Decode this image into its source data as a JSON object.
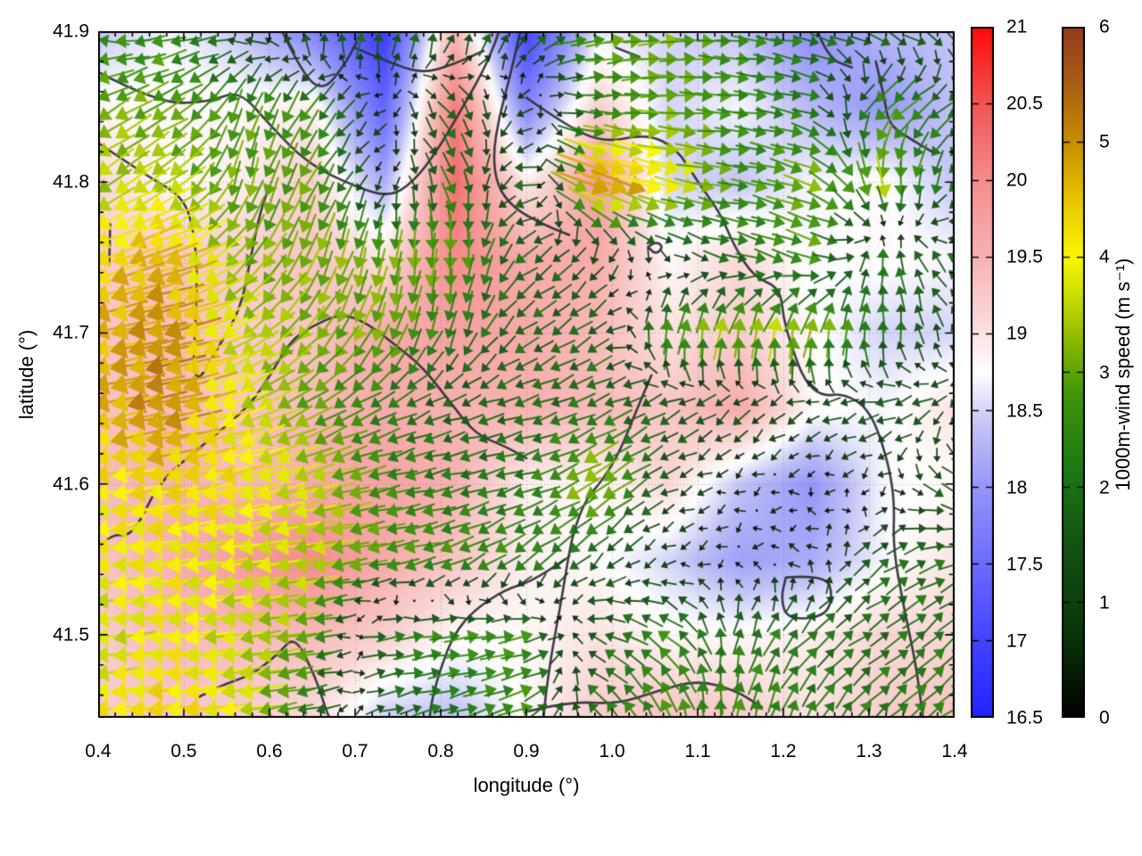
{
  "chart_data": {
    "type": "heatmap",
    "subtype": "quiver-over-heatmap-with-contours",
    "title": "",
    "xlabel": "longitude (°)",
    "ylabel": "latitude (°)",
    "xlim": [
      0.4,
      1.4
    ],
    "ylim": [
      41.445,
      41.9
    ],
    "grid": "dotted-at-major-ticks",
    "x_ticks": [
      0.4,
      0.5,
      0.6,
      0.7,
      0.8,
      0.9,
      1.0,
      1.1,
      1.2,
      1.3,
      1.4
    ],
    "x_tick_labels": [
      "0.4",
      "0.5",
      "0.6",
      "0.7",
      "0.8",
      "0.9",
      "1.0",
      "1.1",
      "1.2",
      "1.3",
      "1.4"
    ],
    "y_ticks": [
      41.5,
      41.6,
      41.7,
      41.8,
      41.9
    ],
    "y_tick_labels": [
      "41.5",
      "41.6",
      "41.7",
      "41.8",
      "41.9"
    ],
    "minor_tick_step": 0.02,
    "temperature": {
      "description": "background shaded field, right inner colorbar",
      "colorbar": {
        "min": 16.5,
        "max": 21,
        "ticks": [
          16.5,
          17,
          17.5,
          18,
          18.5,
          19,
          19.5,
          20,
          20.5,
          21
        ],
        "tick_labels": [
          "16.5",
          "17",
          "17.5",
          "18",
          "18.5",
          "19",
          "19.5",
          "20",
          "20.5",
          "21"
        ],
        "stops": [
          [
            16.5,
            "#2222ff"
          ],
          [
            17.0,
            "#4343ff"
          ],
          [
            17.5,
            "#6b6bff"
          ],
          [
            18.0,
            "#9595fa"
          ],
          [
            18.4,
            "#c3c3f6"
          ],
          [
            18.75,
            "#ffffff"
          ],
          [
            19.1,
            "#f9d7d7"
          ],
          [
            19.5,
            "#f7b2b2"
          ],
          [
            20.0,
            "#f58c8c"
          ],
          [
            20.5,
            "#f25454"
          ],
          [
            21.0,
            "#fc0a0a"
          ]
        ]
      },
      "lons": [
        0.4,
        0.4833,
        0.5667,
        0.65,
        0.7333,
        0.8167,
        0.9,
        0.9833,
        1.0667,
        1.15,
        1.2333,
        1.3167,
        1.4
      ],
      "lats": [
        41.9,
        41.85,
        41.8,
        41.75,
        41.7,
        41.65,
        41.6,
        41.55,
        41.5,
        41.45
      ],
      "values": [
        [
          18.4,
          18.7,
          18.4,
          17.8,
          16.9,
          19.5,
          17.0,
          18.6,
          18.5,
          18.4,
          17.9,
          18.3,
          18.4
        ],
        [
          18.8,
          18.8,
          18.8,
          18.9,
          17.4,
          20.2,
          17.8,
          19.2,
          18.5,
          18.7,
          18.3,
          18.0,
          18.4
        ],
        [
          19.1,
          18.8,
          18.9,
          19.2,
          18.2,
          20.3,
          18.9,
          19.8,
          18.5,
          18.4,
          18.7,
          18.8,
          18.4
        ],
        [
          19.2,
          19.3,
          19.2,
          19.3,
          19.0,
          20.0,
          19.6,
          19.6,
          18.8,
          19.1,
          18.7,
          18.8,
          18.7
        ],
        [
          19.3,
          19.4,
          19.2,
          19.3,
          19.6,
          19.7,
          19.6,
          19.4,
          19.0,
          19.2,
          18.8,
          18.5,
          18.5
        ],
        [
          19.3,
          19.4,
          19.3,
          19.4,
          19.6,
          19.5,
          19.5,
          19.4,
          19.3,
          19.6,
          18.8,
          18.7,
          19.0
        ],
        [
          19.4,
          19.5,
          19.4,
          19.6,
          19.7,
          19.5,
          18.9,
          18.8,
          19.1,
          18.4,
          18.0,
          18.7,
          18.8
        ],
        [
          19.3,
          19.5,
          19.8,
          20.0,
          19.6,
          19.3,
          18.9,
          18.8,
          18.5,
          18.1,
          18.2,
          18.7,
          19.0
        ],
        [
          19.2,
          19.4,
          19.4,
          19.4,
          19.2,
          18.8,
          18.8,
          19.0,
          18.8,
          18.8,
          18.9,
          19.1,
          19.1
        ],
        [
          19.2,
          19.3,
          19.2,
          19.1,
          18.5,
          18.4,
          18.8,
          19.2,
          19.3,
          19.2,
          19.0,
          19.2,
          19.3
        ]
      ]
    },
    "wind": {
      "description": "arrow field colored by speed, far-right colorbar",
      "colorbar": {
        "label": "1000m-wind speed (m s⁻¹)",
        "min": 0,
        "max": 6,
        "ticks": [
          0,
          1,
          2,
          3,
          4,
          5,
          6
        ],
        "tick_labels": [
          "0",
          "1",
          "2",
          "3",
          "4",
          "5",
          "6"
        ],
        "stops": [
          [
            0,
            "#000000"
          ],
          [
            0.7,
            "#0a340a"
          ],
          [
            1.5,
            "#145214"
          ],
          [
            2.2,
            "#1f7a14"
          ],
          [
            2.8,
            "#3f9407"
          ],
          [
            3.2,
            "#7fb300"
          ],
          [
            3.7,
            "#cfe000"
          ],
          [
            4.0,
            "#f8f800"
          ],
          [
            4.5,
            "#e8c400"
          ],
          [
            5.0,
            "#c68e00"
          ],
          [
            5.5,
            "#a85f12"
          ],
          [
            6.0,
            "#933a1f"
          ]
        ]
      },
      "lons": [
        0.4,
        0.4833,
        0.5667,
        0.65,
        0.7333,
        0.8167,
        0.9,
        0.9833,
        1.0667,
        1.15,
        1.2333,
        1.3167,
        1.4
      ],
      "lats": [
        41.9,
        41.85,
        41.8,
        41.75,
        41.7,
        41.65,
        41.6,
        41.55,
        41.5,
        41.45
      ],
      "u": [
        [
          -2.5,
          -2.5,
          -1.5,
          0.0,
          0.5,
          0.3,
          1.0,
          3.0,
          3.0,
          2.5,
          2.0,
          2.0,
          1.5
        ],
        [
          -2.8,
          -2.5,
          -1.0,
          -1.5,
          -0.5,
          1.2,
          -0.8,
          2.0,
          3.0,
          2.5,
          2.0,
          -2.5,
          -1.5
        ],
        [
          -2.8,
          -3.0,
          -0.5,
          -1.5,
          -0.3,
          1.0,
          -1.8,
          5.0,
          4.0,
          2.5,
          3.0,
          0.5,
          -1.0
        ],
        [
          -4.0,
          -4.5,
          -2.0,
          -1.0,
          -0.5,
          0.0,
          -1.5,
          -0.5,
          0.5,
          2.0,
          2.5,
          0.0,
          -1.5
        ],
        [
          -4.5,
          -5.0,
          -3.0,
          -2.0,
          -1.0,
          -0.5,
          -1.5,
          -1.5,
          0.5,
          0.5,
          0.5,
          0.0,
          -0.5
        ],
        [
          -4.5,
          -5.0,
          -3.5,
          -2.5,
          -2.0,
          -1.5,
          -1.8,
          -1.8,
          -1.5,
          -1.0,
          -1.0,
          -1.5,
          -1.0
        ],
        [
          -4.0,
          -4.2,
          -4.0,
          -3.5,
          -2.5,
          -2.0,
          -2.0,
          -3.0,
          -1.0,
          -0.3,
          -0.2,
          -0.3,
          1.5
        ],
        [
          -4.0,
          -4.0,
          -3.8,
          -3.5,
          -2.8,
          -2.5,
          -2.0,
          -1.0,
          -0.5,
          -0.2,
          -0.5,
          1.5,
          1.8
        ],
        [
          -3.5,
          -4.0,
          -3.5,
          -3.0,
          2.0,
          2.5,
          2.5,
          -1.5,
          -2.0,
          0.5,
          1.5,
          1.5,
          1.5
        ],
        [
          -4.0,
          -4.3,
          -3.8,
          -2.0,
          1.5,
          2.0,
          2.5,
          -1.5,
          -1.0,
          0.5,
          1.0,
          1.5,
          2.0
        ]
      ],
      "v": [
        [
          0.5,
          -0.5,
          0.5,
          2.0,
          2.0,
          1.8,
          1.5,
          0.5,
          0.3,
          -0.3,
          -0.5,
          -0.5,
          -1.0
        ],
        [
          -1.5,
          -1.5,
          -2.5,
          -2.0,
          -0.3,
          -1.5,
          -0.5,
          0.0,
          0.0,
          -0.3,
          -0.5,
          -1.8,
          -1.0
        ],
        [
          -2.0,
          -2.0,
          -3.0,
          -2.5,
          -0.3,
          -2.0,
          0.0,
          -2.0,
          -1.0,
          -0.3,
          -1.0,
          -3.5,
          -1.5
        ],
        [
          -1.5,
          -1.5,
          -2.5,
          -3.0,
          -3.0,
          -3.0,
          -1.0,
          -1.0,
          -0.5,
          -0.5,
          -1.0,
          2.0,
          1.0
        ],
        [
          -1.0,
          -1.0,
          -2.0,
          -2.5,
          -3.0,
          -2.0,
          -1.0,
          -1.0,
          3.0,
          3.5,
          3.5,
          2.0,
          1.0
        ],
        [
          -1.0,
          -1.0,
          -1.5,
          -1.5,
          -1.0,
          -0.5,
          -0.5,
          -0.8,
          -0.8,
          -1.0,
          -0.5,
          -0.5,
          -1.0
        ],
        [
          -0.5,
          -0.8,
          -1.0,
          -1.0,
          -0.5,
          -0.5,
          -0.5,
          -2.0,
          -0.5,
          -0.1,
          -0.1,
          -0.3,
          -1.0
        ],
        [
          -0.5,
          -0.5,
          -0.5,
          -0.5,
          -0.5,
          -1.0,
          -1.5,
          -1.0,
          -0.3,
          -0.1,
          0.3,
          1.2,
          0.5
        ],
        [
          -0.3,
          -0.5,
          -0.5,
          -0.5,
          0.3,
          0.3,
          0.5,
          0.5,
          1.5,
          2.0,
          1.5,
          1.0,
          1.5
        ],
        [
          -0.5,
          -0.3,
          -0.5,
          -0.5,
          0.5,
          0.5,
          1.0,
          1.5,
          2.5,
          2.5,
          2.0,
          1.5,
          1.5
        ]
      ]
    },
    "contours": [
      [
        [
          0.4,
          41.873
        ],
        [
          0.47,
          41.852
        ],
        [
          0.53,
          41.853
        ],
        [
          0.565,
          41.861
        ],
        [
          0.6,
          41.838
        ],
        [
          0.645,
          41.812
        ],
        [
          0.7,
          41.797
        ],
        [
          0.74,
          41.79
        ],
        [
          0.768,
          41.8
        ],
        [
          0.795,
          41.82
        ],
        [
          0.822,
          41.846
        ],
        [
          0.848,
          41.872
        ],
        [
          0.862,
          41.89
        ],
        [
          0.868,
          41.9
        ]
      ],
      [
        [
          0.893,
          41.9
        ],
        [
          0.881,
          41.87
        ],
        [
          0.868,
          41.843
        ],
        [
          0.861,
          41.818
        ],
        [
          0.866,
          41.797
        ],
        [
          0.885,
          41.783
        ],
        [
          0.915,
          41.773
        ],
        [
          0.95,
          41.765
        ]
      ],
      [
        [
          0.9,
          41.856
        ],
        [
          0.945,
          41.838
        ],
        [
          0.99,
          41.826
        ],
        [
          1.04,
          41.832
        ],
        [
          1.075,
          41.823
        ],
        [
          1.1,
          41.8
        ],
        [
          1.126,
          41.78
        ],
        [
          1.143,
          41.757
        ],
        [
          1.166,
          41.737
        ],
        [
          1.196,
          41.73
        ],
        [
          1.2,
          41.71
        ],
        [
          1.21,
          41.69
        ],
        [
          1.225,
          41.668
        ],
        [
          1.245,
          41.658
        ],
        [
          1.27,
          41.66
        ],
        [
          1.3,
          41.65
        ],
        [
          1.32,
          41.62
        ],
        [
          1.33,
          41.59
        ],
        [
          1.328,
          41.558
        ],
        [
          1.34,
          41.52
        ],
        [
          1.355,
          41.48
        ],
        [
          1.363,
          41.445
        ]
      ],
      [
        [
          0.615,
          41.9
        ],
        [
          0.638,
          41.872
        ],
        [
          0.663,
          41.86
        ],
        [
          0.688,
          41.878
        ],
        [
          0.702,
          41.893
        ]
      ],
      [
        [
          0.4,
          41.826
        ],
        [
          0.46,
          41.803
        ],
        [
          0.5,
          41.79
        ],
        [
          0.513,
          41.765
        ],
        [
          0.516,
          41.73
        ],
        [
          0.509,
          41.66
        ],
        [
          0.543,
          41.693
        ],
        [
          0.567,
          41.717
        ],
        [
          0.578,
          41.75
        ],
        [
          0.59,
          41.782
        ],
        [
          0.6,
          41.797
        ]
      ],
      [
        [
          0.4,
          41.558
        ],
        [
          0.415,
          41.567
        ],
        [
          0.44,
          41.565
        ],
        [
          0.47,
          41.6
        ],
        [
          0.507,
          41.619
        ],
        [
          0.545,
          41.636
        ],
        [
          0.578,
          41.653
        ],
        [
          0.601,
          41.672
        ],
        [
          0.625,
          41.695
        ],
        [
          0.648,
          41.704
        ],
        [
          0.683,
          41.713
        ],
        [
          0.713,
          41.707
        ],
        [
          0.747,
          41.692
        ],
        [
          0.778,
          41.678
        ],
        [
          0.81,
          41.655
        ],
        [
          0.84,
          41.633
        ],
        [
          0.875,
          41.625
        ],
        [
          0.9,
          41.617
        ]
      ],
      [
        [
          1.046,
          41.672
        ],
        [
          1.028,
          41.648
        ],
        [
          1.008,
          41.62
        ],
        [
          0.988,
          41.602
        ],
        [
          0.97,
          41.59
        ],
        [
          0.957,
          41.572
        ],
        [
          0.95,
          41.555
        ],
        [
          0.94,
          41.52
        ],
        [
          0.93,
          41.49
        ],
        [
          0.923,
          41.462
        ],
        [
          0.92,
          41.445
        ]
      ],
      [
        [
          0.515,
          41.458
        ],
        [
          0.545,
          41.467
        ],
        [
          0.578,
          41.473
        ],
        [
          0.61,
          41.487
        ],
        [
          0.63,
          41.5
        ],
        [
          0.655,
          41.47
        ],
        [
          0.665,
          41.452
        ],
        [
          0.67,
          41.445
        ]
      ],
      [
        [
          0.945,
          41.55
        ],
        [
          0.91,
          41.536
        ],
        [
          0.875,
          41.53
        ],
        [
          0.838,
          41.516
        ],
        [
          0.815,
          41.5
        ],
        [
          0.8,
          41.478
        ],
        [
          0.79,
          41.458
        ],
        [
          0.787,
          41.445
        ]
      ],
      [
        [
          0.9,
          41.449
        ],
        [
          0.95,
          41.456
        ],
        [
          1.005,
          41.454
        ],
        [
          1.055,
          41.463
        ],
        [
          1.1,
          41.47
        ],
        [
          1.145,
          41.463
        ],
        [
          1.175,
          41.452
        ]
      ],
      [
        [
          1.203,
          41.538
        ],
        [
          1.25,
          41.54
        ],
        [
          1.258,
          41.525
        ],
        [
          1.248,
          41.512
        ],
        [
          1.205,
          41.51
        ],
        [
          1.197,
          41.524
        ],
        [
          1.203,
          41.538
        ]
      ],
      [
        [
          1.042,
          41.757
        ],
        [
          1.051,
          41.761
        ],
        [
          1.06,
          41.757
        ],
        [
          1.051,
          41.752
        ],
        [
          1.042,
          41.757
        ]
      ],
      [
        [
          1.308,
          41.88
        ],
        [
          1.318,
          41.856
        ],
        [
          1.323,
          41.838
        ],
        [
          1.35,
          41.828
        ],
        [
          1.374,
          41.82
        ]
      ],
      [
        [
          0.414,
          41.772
        ],
        [
          0.413,
          41.745
        ]
      ],
      [
        [
          1.005,
          41.889
        ],
        [
          1.032,
          41.883
        ]
      ],
      [
        [
          1.24,
          41.9
        ],
        [
          1.252,
          41.882
        ],
        [
          1.28,
          41.876
        ]
      ],
      [
        [
          0.7,
          41.889
        ],
        [
          0.745,
          41.878
        ],
        [
          0.78,
          41.872
        ],
        [
          0.815,
          41.878
        ],
        [
          0.85,
          41.887
        ]
      ]
    ]
  }
}
